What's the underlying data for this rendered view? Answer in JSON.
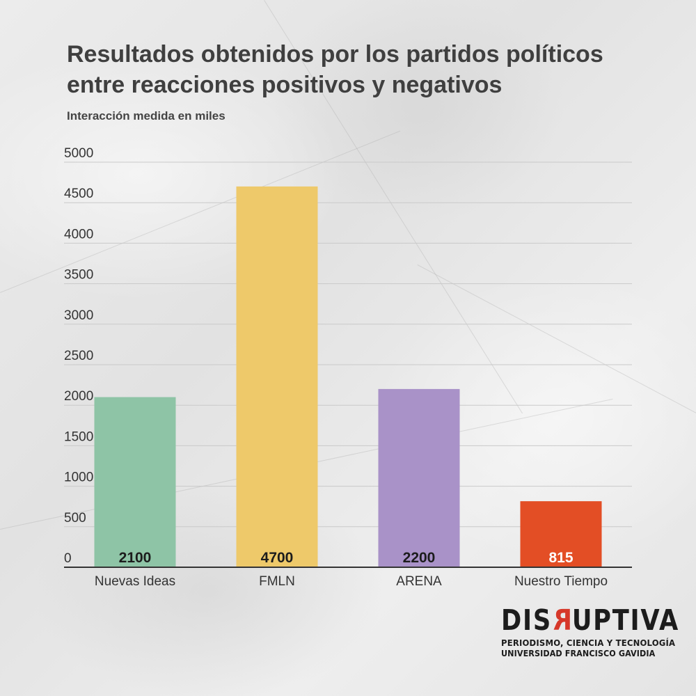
{
  "chart_data": {
    "type": "bar",
    "title": "Resultados obtenidos por los partidos políticos entre reacciones positivos y negativos",
    "subtitle": "Interacción medida en miles",
    "xlabel": "",
    "ylabel": "",
    "categories": [
      "Nuevas Ideas",
      "FMLN",
      "ARENA",
      "Nuestro Tiempo"
    ],
    "values": [
      2100,
      4700,
      2200,
      815
    ],
    "value_labels": [
      "2100",
      "4700",
      "2200",
      "815"
    ],
    "colors": [
      "#8ec4a6",
      "#eec96a",
      "#a992c8",
      "#e34e25"
    ],
    "label_colors": [
      "#1c1c1c",
      "#1c1c1c",
      "#1c1c1c",
      "#ffffff"
    ],
    "ylim": [
      0,
      5000
    ],
    "yticks": [
      0,
      500,
      1000,
      1500,
      2000,
      2500,
      3000,
      3500,
      4000,
      4500,
      5000
    ],
    "grid": true,
    "legend": "none"
  },
  "branding": {
    "word_before": "DIS",
    "word_r": "R",
    "word_after": "UPTIVA",
    "tagline": "PERIODISMO, CIENCIA Y TECNOLOGÍA",
    "institution": "UNIVERSIDAD FRANCISCO GAVIDIA"
  }
}
